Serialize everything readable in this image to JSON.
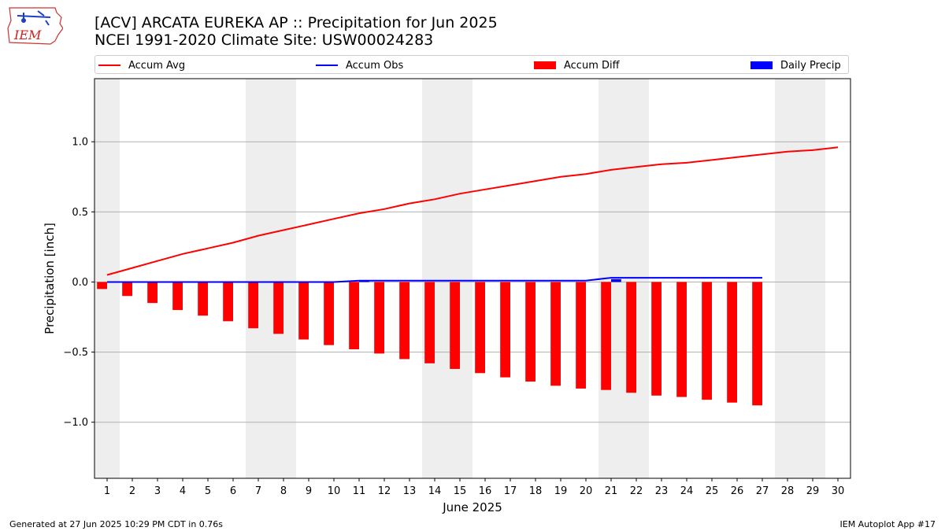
{
  "header": {
    "title_line1": "[ACV] ARCATA EUREKA AP :: Precipitation for Jun 2025",
    "title_line2": "NCEI 1991-2020 Climate Site: USW00024283"
  },
  "logo": {
    "text": "IEM",
    "icon": "iem-iowa-logo"
  },
  "legend": {
    "accum_avg": "Accum Avg",
    "accum_obs": "Accum Obs",
    "accum_diff": "Accum Diff",
    "daily_precip": "Daily Precip",
    "position": "top"
  },
  "footer": {
    "left": "Generated at 27 Jun 2025 10:29 PM CDT in 0.76s",
    "right": "IEM Autoplot App #17"
  },
  "colors": {
    "accum_avg": "#ff0000",
    "accum_obs": "#0000ff",
    "accum_diff": "#ff0000",
    "daily_precip": "#0000ff",
    "weekend_shading": "#eeeeee",
    "grid": "#b0b0b0"
  },
  "chart_data": {
    "type": "bar",
    "xlabel": "June 2025",
    "ylabel": "Precipitation [inch]",
    "xlim": [
      0.5,
      30.5
    ],
    "ylim": [
      -1.4,
      1.45
    ],
    "yticks": [
      -1.0,
      -0.5,
      0.0,
      0.5,
      1.0
    ],
    "ytick_labels": [
      "−1.0",
      "−0.5",
      "0.0",
      "0.5",
      "1.0"
    ],
    "grid": "horizontal",
    "days": [
      1,
      2,
      3,
      4,
      5,
      6,
      7,
      8,
      9,
      10,
      11,
      12,
      13,
      14,
      15,
      16,
      17,
      18,
      19,
      20,
      21,
      22,
      23,
      24,
      25,
      26,
      27,
      28,
      29,
      30
    ],
    "weekend_days": [
      1,
      7,
      8,
      14,
      15,
      21,
      22,
      28,
      29
    ],
    "series": [
      {
        "name": "Accum Avg",
        "kind": "line",
        "x": [
          1,
          2,
          3,
          4,
          5,
          6,
          7,
          8,
          9,
          10,
          11,
          12,
          13,
          14,
          15,
          16,
          17,
          18,
          19,
          20,
          21,
          22,
          23,
          24,
          25,
          26,
          27,
          28,
          29,
          30
        ],
        "values": [
          0.05,
          0.1,
          0.15,
          0.2,
          0.24,
          0.28,
          0.33,
          0.37,
          0.41,
          0.45,
          0.49,
          0.52,
          0.56,
          0.59,
          0.63,
          0.66,
          0.69,
          0.72,
          0.75,
          0.77,
          0.8,
          0.82,
          0.84,
          0.85,
          0.87,
          0.89,
          0.91,
          0.93,
          0.94,
          0.96
        ]
      },
      {
        "name": "Accum Obs",
        "kind": "line",
        "x": [
          1,
          2,
          3,
          4,
          5,
          6,
          7,
          8,
          9,
          10,
          11,
          12,
          13,
          14,
          15,
          16,
          17,
          18,
          19,
          20,
          21,
          22,
          23,
          24,
          25,
          26,
          27
        ],
        "values": [
          0,
          0,
          0,
          0,
          0,
          0,
          0,
          0,
          0,
          0,
          0.01,
          0.01,
          0.01,
          0.01,
          0.01,
          0.01,
          0.01,
          0.01,
          0.01,
          0.01,
          0.03,
          0.03,
          0.03,
          0.03,
          0.03,
          0.03,
          0.03
        ]
      },
      {
        "name": "Accum Diff",
        "kind": "bar",
        "x": [
          1,
          2,
          3,
          4,
          5,
          6,
          7,
          8,
          9,
          10,
          11,
          12,
          13,
          14,
          15,
          16,
          17,
          18,
          19,
          20,
          21,
          22,
          23,
          24,
          25,
          26,
          27
        ],
        "values": [
          -0.05,
          -0.1,
          -0.15,
          -0.2,
          -0.24,
          -0.28,
          -0.33,
          -0.37,
          -0.41,
          -0.45,
          -0.48,
          -0.51,
          -0.55,
          -0.58,
          -0.62,
          -0.65,
          -0.68,
          -0.71,
          -0.74,
          -0.76,
          -0.77,
          -0.79,
          -0.81,
          -0.82,
          -0.84,
          -0.86,
          -0.88
        ]
      },
      {
        "name": "Daily Precip",
        "kind": "bar",
        "x": [
          11,
          21
        ],
        "values": [
          0.01,
          0.02
        ]
      }
    ]
  }
}
